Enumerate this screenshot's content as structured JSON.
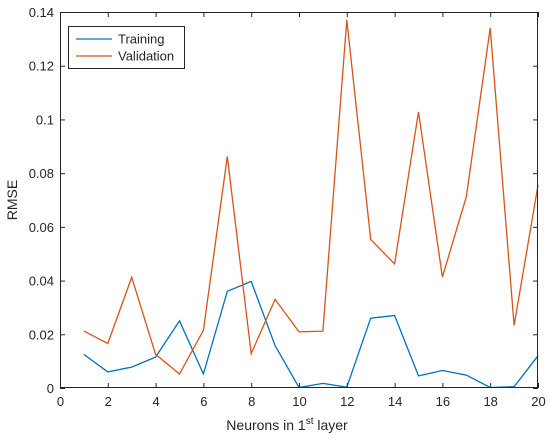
{
  "chart_data": {
    "type": "line",
    "xlabel": "Neurons in 1",
    "xlabel_sup": "st",
    "xlabel_suffix": " layer",
    "ylabel": "RMSE",
    "xlim": [
      0,
      20
    ],
    "ylim": [
      0,
      0.14
    ],
    "xticks": [
      "0",
      "2",
      "4",
      "6",
      "8",
      "10",
      "12",
      "14",
      "16",
      "18",
      "20"
    ],
    "yticks": [
      "0",
      "0.02",
      "0.04",
      "0.06",
      "0.08",
      "0.1",
      "0.12",
      "0.14"
    ],
    "grid": false,
    "legend_position": "top-left",
    "x": [
      1,
      2,
      3,
      4,
      5,
      6,
      7,
      8,
      9,
      10,
      11,
      12,
      13,
      14,
      15,
      16,
      17,
      18,
      19,
      20
    ],
    "series": [
      {
        "name": "Training",
        "color": "#0072BD",
        "values": [
          0.0125,
          0.006,
          0.0078,
          0.0115,
          0.025,
          0.0052,
          0.036,
          0.0397,
          0.0158,
          0.0002,
          0.0017,
          0.0003,
          0.026,
          0.027,
          0.0045,
          0.0065,
          0.0048,
          0.0002,
          0.0005,
          0.012
        ]
      },
      {
        "name": "Validation",
        "color": "#D95319",
        "values": [
          0.0212,
          0.0166,
          0.0412,
          0.0125,
          0.0052,
          0.0215,
          0.0862,
          0.0128,
          0.033,
          0.0209,
          0.0212,
          0.137,
          0.0553,
          0.0462,
          0.1028,
          0.0413,
          0.0712,
          0.134,
          0.0233,
          0.0755
        ]
      }
    ]
  }
}
